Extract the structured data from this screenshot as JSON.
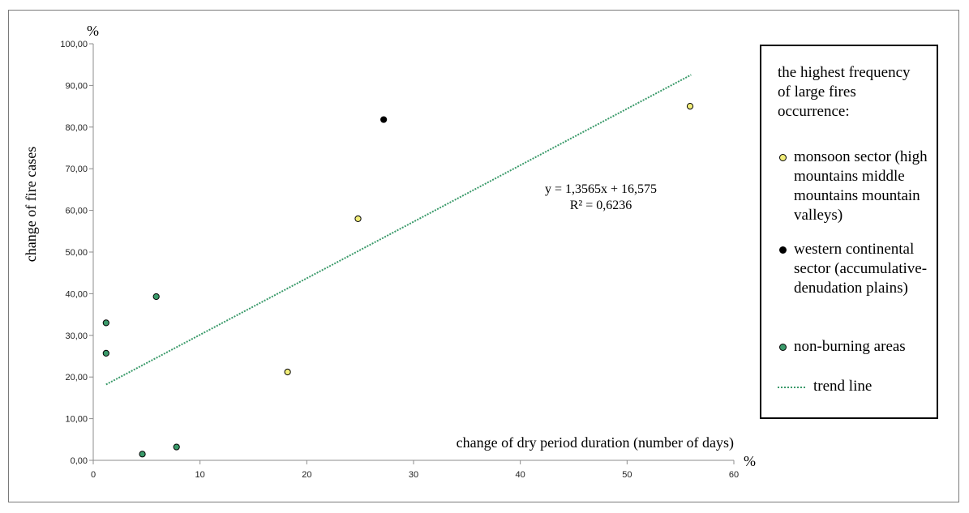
{
  "chart_data": {
    "type": "scatter",
    "title": "",
    "xlabel": "change of dry period duration (number of days)",
    "ylabel": "change of fire cases",
    "x_unit": "%",
    "y_unit": "%",
    "xlim": [
      0,
      60
    ],
    "ylim": [
      0,
      100
    ],
    "x_ticks": [
      "0",
      "10",
      "20",
      "30",
      "40",
      "50",
      "60"
    ],
    "y_ticks": [
      "0,00",
      "10,00",
      "20,00",
      "30,00",
      "40,00",
      "50,00",
      "60,00",
      "70,00",
      "80,00",
      "90,00",
      "100,00"
    ],
    "x_tick_values": [
      0,
      10,
      20,
      30,
      40,
      50,
      60
    ],
    "y_tick_values": [
      0,
      10,
      20,
      30,
      40,
      50,
      60,
      70,
      80,
      90,
      100
    ],
    "grid": false,
    "legend_position": "right",
    "legend_title": "the highest frequency of large fires occurrence:",
    "series": [
      {
        "name": "monsoon sector (high mountains middle mountains mountain valleys)",
        "color": "#f2ee7a",
        "points": [
          {
            "x": 18.2,
            "y": 21.2
          },
          {
            "x": 24.8,
            "y": 58.0
          },
          {
            "x": 55.9,
            "y": 85.0
          }
        ]
      },
      {
        "name": "western continental sector (accumulative-denudation plains)",
        "color": "#000000",
        "points": [
          {
            "x": 27.2,
            "y": 81.8
          }
        ]
      },
      {
        "name": "non-burning areas",
        "color": "#3a9a6a",
        "points": [
          {
            "x": 1.2,
            "y": 33.0
          },
          {
            "x": 1.2,
            "y": 25.7
          },
          {
            "x": 5.9,
            "y": 39.3
          },
          {
            "x": 4.6,
            "y": 1.5
          },
          {
            "x": 7.8,
            "y": 3.2
          }
        ]
      }
    ],
    "trend_line": {
      "name": "trend line",
      "color": "#3a9a6a",
      "x_range": [
        1.2,
        56
      ],
      "slope": 1.3565,
      "intercept": 16.575,
      "equation": "y = 1,3565x + 16,575",
      "r_squared": "R² = 0,6236"
    }
  }
}
